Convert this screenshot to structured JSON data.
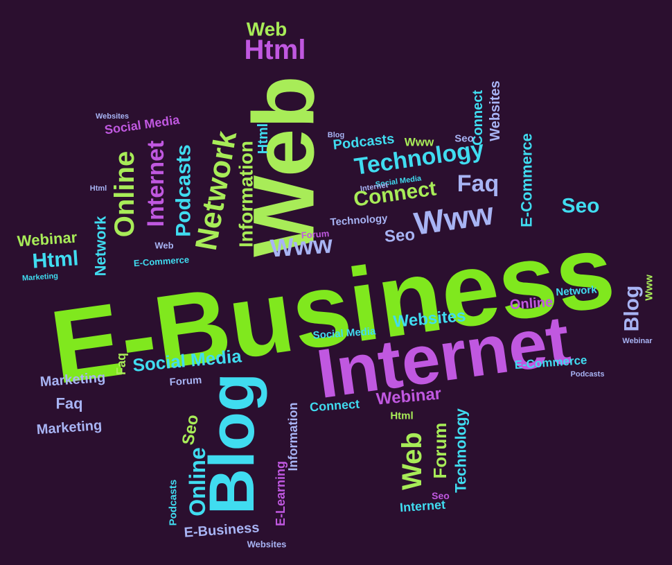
{
  "words": [
    "E-Business",
    "Internet",
    "Web",
    "Blog",
    "Technology",
    "Connect",
    "Faq",
    "Www",
    "Www",
    "Seo",
    "Seo",
    "Html",
    "Web",
    "Social Media",
    "Online",
    "Internet",
    "Podcasts",
    "Network",
    "Information",
    "Webinar",
    "Html",
    "Network",
    "Social Media",
    "Websites",
    "Online",
    "Network",
    "Blog",
    "E-Commerce",
    "Webinar",
    "Connect",
    "Web",
    "Forum",
    "Technology",
    "Internet",
    "Online",
    "Seo",
    "E-Business",
    "Websites",
    "Marketing",
    "Faq",
    "Marketing",
    "Podcasts",
    "E-Learning",
    "Information",
    "E-Commerce",
    "Websites",
    "Connect",
    "Podcasts",
    "Www",
    "Seo",
    "Faq",
    "Forum",
    "Html",
    "Technology",
    "Www",
    "Blog",
    "Websites",
    "Html",
    "Social Media",
    "Internet",
    "Forum",
    "Web",
    "E-Commerce",
    "Marketing",
    "Social Media",
    "Webinar",
    "Podcasts",
    "Html",
    "Seo"
  ]
}
